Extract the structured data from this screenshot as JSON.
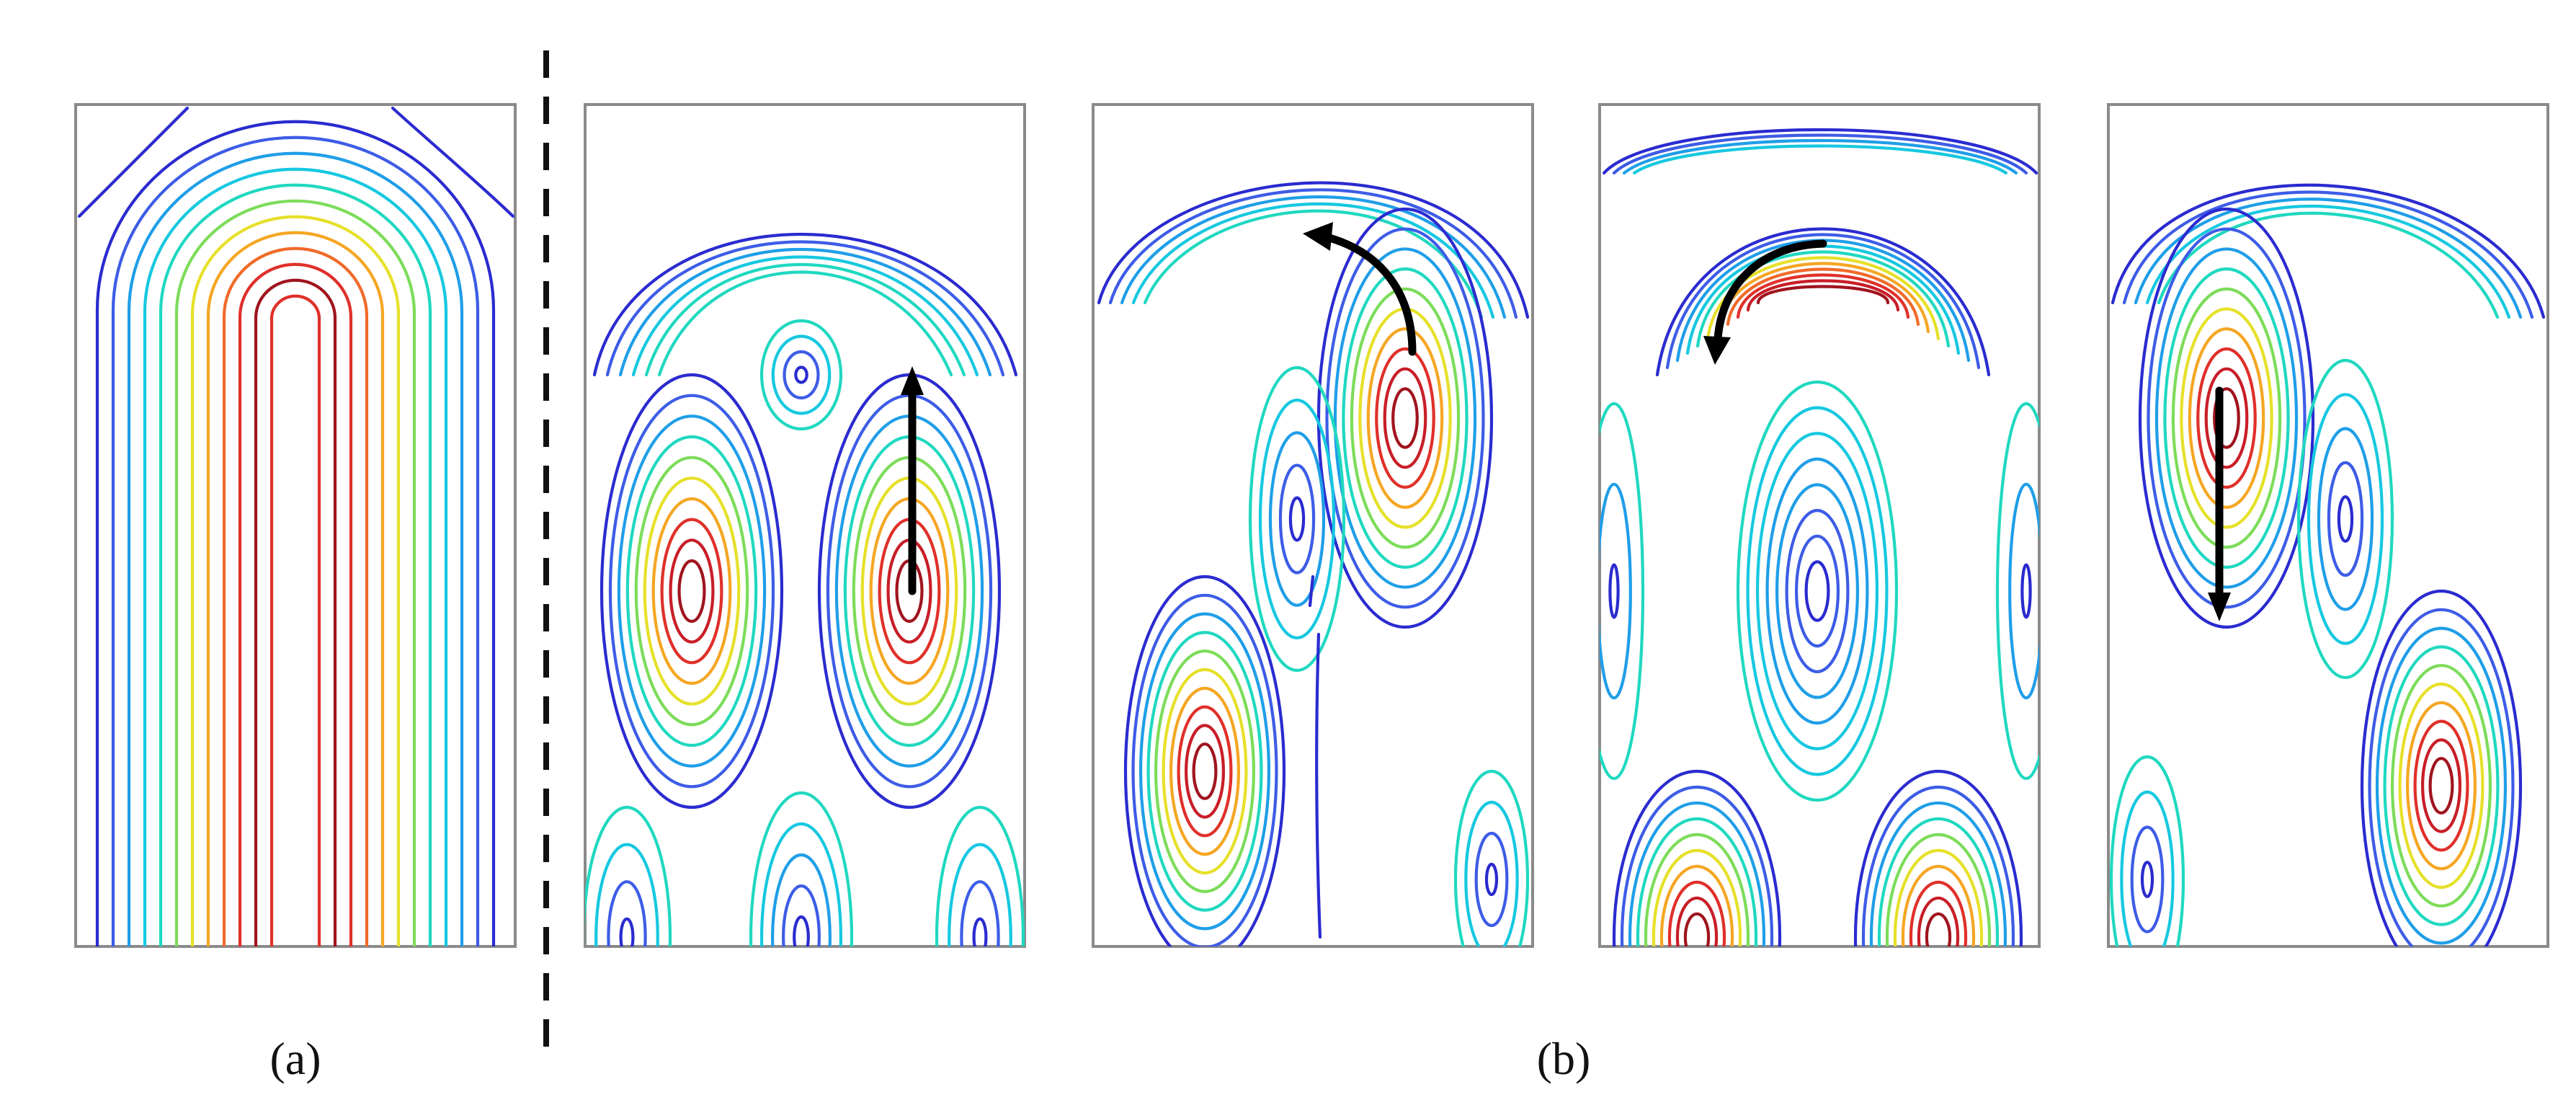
{
  "figure": {
    "captions": {
      "a": "(a)",
      "b": "(b)"
    },
    "contour_colormap": [
      "#2b2bd0",
      "#3d5ce6",
      "#1f9ee8",
      "#16c8e0",
      "#20d8c0",
      "#7ddc5a",
      "#e6e02a",
      "#f5a623",
      "#f06a2a",
      "#e0302a",
      "#c81e28",
      "#a0141e"
    ],
    "panels": [
      {
        "id": "a",
        "group": "a",
        "pattern": "single-u-mode"
      },
      {
        "id": "b1",
        "group": "b",
        "pattern": "two-cell-upward-arrow",
        "arrow": "up"
      },
      {
        "id": "b2",
        "group": "b",
        "pattern": "s-shaped-curved-arrow-left",
        "arrow": "curved-up-left"
      },
      {
        "id": "b3",
        "group": "b",
        "pattern": "top-cell-curved-arrow-down-left",
        "arrow": "curved-down-left"
      },
      {
        "id": "b4",
        "group": "b",
        "pattern": "s-shaped-downward-arrow",
        "arrow": "down"
      }
    ]
  }
}
